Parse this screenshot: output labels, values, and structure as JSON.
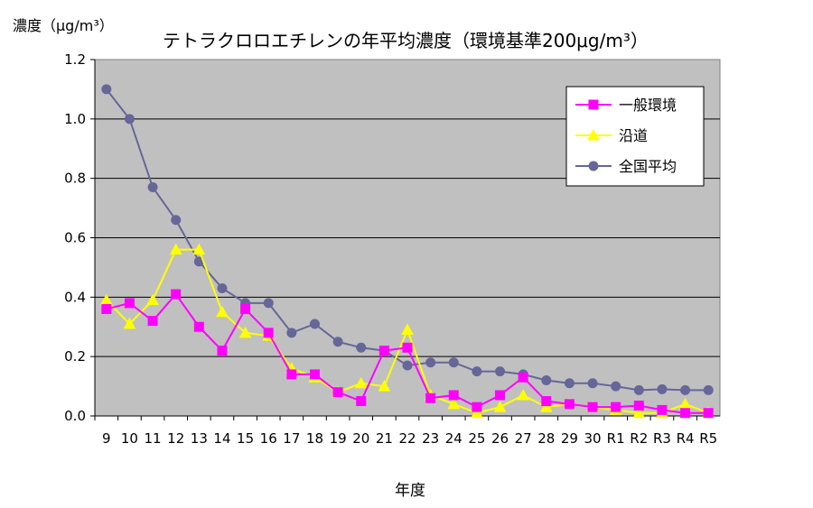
{
  "chart_data": {
    "type": "line",
    "title": "テトラクロロエチレンの年平均濃度（環境基準200μg/m³）",
    "ylabel": "濃度（μg/m³）",
    "xlabel": "年度",
    "ylim": [
      0,
      1.2
    ],
    "yticks": [
      "0.0",
      "0.2",
      "0.4",
      "0.6",
      "0.8",
      "1.0",
      "1.2"
    ],
    "ytick_values": [
      0,
      0.2,
      0.4,
      0.6,
      0.8,
      1.0,
      1.2
    ],
    "grid": true,
    "legend_position": "top-right",
    "categories": [
      "9",
      "10",
      "11",
      "12",
      "13",
      "14",
      "15",
      "16",
      "17",
      "18",
      "19",
      "20",
      "21",
      "22",
      "23",
      "24",
      "25",
      "26",
      "27",
      "28",
      "29",
      "30",
      "R1",
      "R2",
      "R3",
      "R4",
      "R5"
    ],
    "series": [
      {
        "name": "一般環境",
        "color": "#ff00ff",
        "marker": "square",
        "values": [
          0.36,
          0.38,
          0.32,
          0.41,
          0.3,
          0.22,
          0.36,
          0.28,
          0.14,
          0.14,
          0.08,
          0.05,
          0.22,
          0.23,
          0.06,
          0.07,
          0.03,
          0.07,
          0.13,
          0.05,
          0.04,
          0.03,
          0.03,
          0.035,
          0.02,
          0.01,
          0.01
        ]
      },
      {
        "name": "沿道",
        "color": "#ffff00",
        "marker": "triangle",
        "values": [
          0.39,
          0.31,
          0.39,
          0.56,
          0.56,
          0.35,
          0.28,
          0.27,
          0.16,
          0.13,
          0.08,
          0.11,
          0.1,
          0.29,
          0.07,
          0.04,
          0.01,
          0.03,
          0.07,
          0.03,
          0.04,
          0.03,
          0.02,
          0.01,
          0.01,
          0.04,
          0.01
        ]
      },
      {
        "name": "全国平均",
        "color": "#666699",
        "marker": "circle",
        "values": [
          1.1,
          1.0,
          0.77,
          0.66,
          0.52,
          0.43,
          0.38,
          0.38,
          0.28,
          0.31,
          0.25,
          0.23,
          0.22,
          0.17,
          0.18,
          0.18,
          0.15,
          0.15,
          0.14,
          0.12,
          0.11,
          0.11,
          0.1,
          0.087,
          0.09,
          0.087,
          0.087
        ]
      }
    ]
  }
}
